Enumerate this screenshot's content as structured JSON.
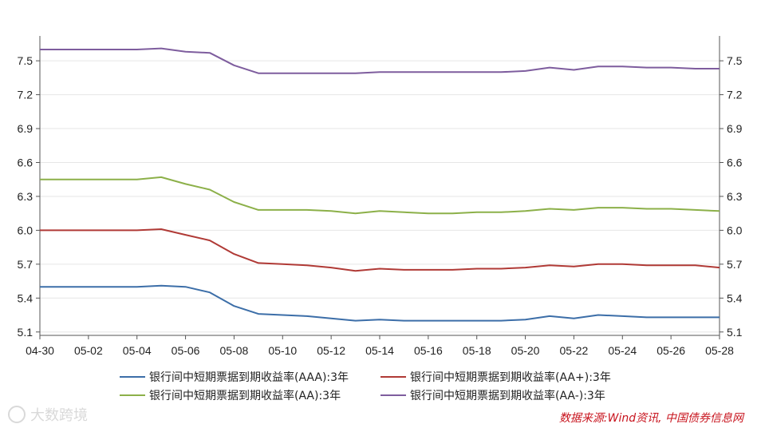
{
  "chart_data": {
    "type": "line",
    "x": [
      "04-30",
      "05-01",
      "05-02",
      "05-03",
      "05-04",
      "05-05",
      "05-06",
      "05-07",
      "05-08",
      "05-09",
      "05-10",
      "05-11",
      "05-12",
      "05-13",
      "05-14",
      "05-15",
      "05-16",
      "05-17",
      "05-18",
      "05-19",
      "05-20",
      "05-21",
      "05-22",
      "05-23",
      "05-24",
      "05-25",
      "05-26",
      "05-27",
      "05-28"
    ],
    "x_tick_labels": [
      "04-30",
      "05-02",
      "05-04",
      "05-06",
      "05-08",
      "05-10",
      "05-12",
      "05-14",
      "05-16",
      "05-18",
      "05-20",
      "05-22",
      "05-24",
      "05-26",
      "05-28"
    ],
    "y_ticks": [
      5.1,
      5.4,
      5.7,
      6.0,
      6.3,
      6.6,
      6.9,
      7.2,
      7.5
    ],
    "ylim": [
      5.07,
      7.72
    ],
    "grid": true,
    "legend_position": "bottom",
    "series": [
      {
        "name": "银行间中短期票据到期收益率(AAA):3年",
        "color": "#3c6ea8",
        "values": [
          5.5,
          5.5,
          5.5,
          5.5,
          5.5,
          5.51,
          5.5,
          5.45,
          5.33,
          5.26,
          5.25,
          5.24,
          5.22,
          5.2,
          5.21,
          5.2,
          5.2,
          5.2,
          5.2,
          5.2,
          5.21,
          5.24,
          5.22,
          5.25,
          5.24,
          5.23,
          5.23,
          5.23,
          5.23
        ]
      },
      {
        "name": "银行间中短期票据到期收益率(AA+):3年",
        "color": "#b03a36",
        "values": [
          6.0,
          6.0,
          6.0,
          6.0,
          6.0,
          6.01,
          5.96,
          5.91,
          5.79,
          5.71,
          5.7,
          5.69,
          5.67,
          5.64,
          5.66,
          5.65,
          5.65,
          5.65,
          5.66,
          5.66,
          5.67,
          5.69,
          5.68,
          5.7,
          5.7,
          5.69,
          5.69,
          5.69,
          5.67
        ]
      },
      {
        "name": "银行间中短期票据到期收益率(AA):3年",
        "color": "#8cb049",
        "values": [
          6.45,
          6.45,
          6.45,
          6.45,
          6.45,
          6.47,
          6.41,
          6.36,
          6.25,
          6.18,
          6.18,
          6.18,
          6.17,
          6.15,
          6.17,
          6.16,
          6.15,
          6.15,
          6.16,
          6.16,
          6.17,
          6.19,
          6.18,
          6.2,
          6.2,
          6.19,
          6.19,
          6.18,
          6.17
        ]
      },
      {
        "name": "银行间中短期票据到期收益率(AA-):3年",
        "color": "#7e5d9e",
        "values": [
          7.6,
          7.6,
          7.6,
          7.6,
          7.6,
          7.61,
          7.58,
          7.57,
          7.46,
          7.39,
          7.39,
          7.39,
          7.39,
          7.39,
          7.4,
          7.4,
          7.4,
          7.4,
          7.4,
          7.4,
          7.41,
          7.44,
          7.42,
          7.45,
          7.45,
          7.44,
          7.44,
          7.43,
          7.43
        ]
      }
    ]
  },
  "source_note": "数据来源:Wind资讯, 中国债券信息网",
  "watermark": "大数跨境"
}
